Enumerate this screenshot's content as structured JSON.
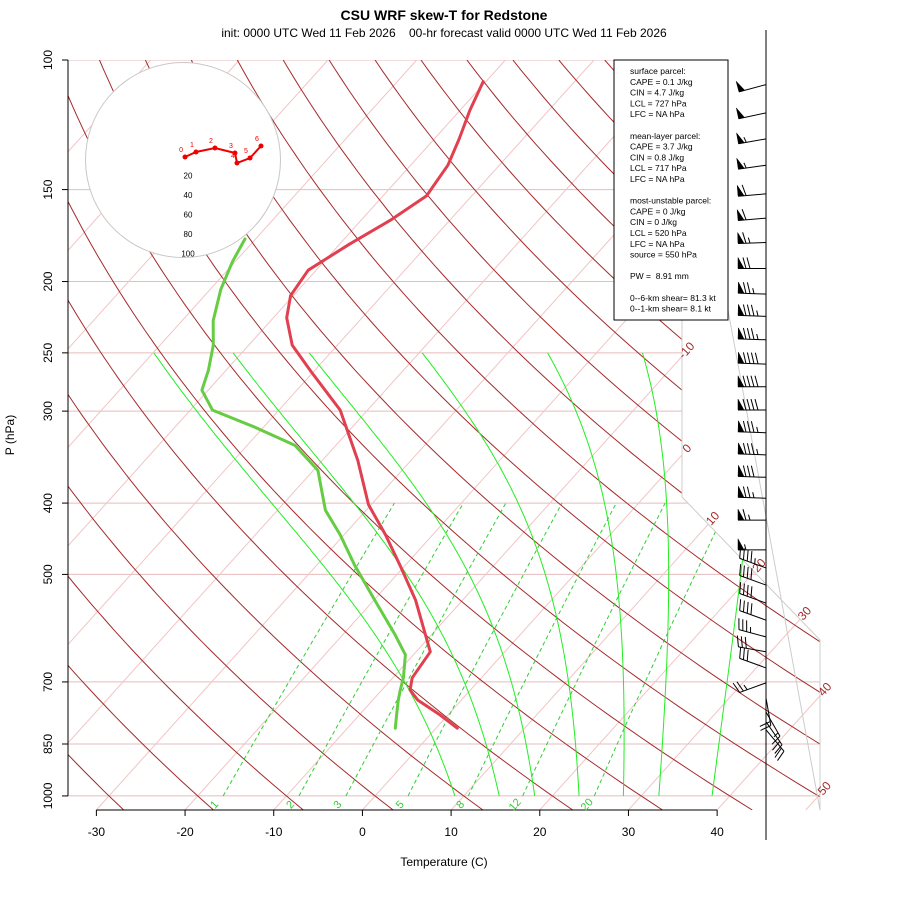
{
  "chart_data": {
    "type": "skewt",
    "title": "CSU WRF skew-T for Redstone",
    "subtitle": "init: 0000 UTC Wed 11 Feb 2026    00-hr forecast valid 0000 UTC Wed 11 Feb 2026",
    "x_label": "Temperature (C)",
    "y_label": "P (hPa)",
    "xlim": [
      -33.2,
      51.6
    ],
    "ylim": [
      1045,
      100
    ],
    "log_y": true,
    "xticks": [
      -30,
      -20,
      -10,
      0,
      10,
      20,
      30,
      40
    ],
    "yticks": [
      100,
      150,
      200,
      250,
      300,
      400,
      500,
      700,
      850,
      1000
    ],
    "grid": true,
    "isotherms": {
      "color": "#f2c4c4",
      "values": [
        -130,
        -120,
        -110,
        -100,
        -90,
        -80,
        -70,
        -60,
        -50,
        -40,
        -30,
        -20,
        -10,
        0,
        10,
        20,
        30,
        40,
        50
      ],
      "labeled": [
        -10,
        0,
        10,
        20,
        30,
        40,
        50
      ],
      "label_color": "#a52a2a"
    },
    "dry_adiabats": {
      "color": "#a52a2a",
      "values": [
        -30,
        -20,
        -10,
        0,
        10,
        20,
        30,
        40,
        50,
        60,
        70,
        80,
        90,
        100,
        110,
        120,
        130,
        140,
        150,
        160,
        170
      ]
    },
    "moist_adiabats": {
      "color": "#22ee22",
      "plim": [
        1000,
        250
      ],
      "values": [
        9,
        14,
        18,
        23,
        28,
        32,
        38
      ]
    },
    "mixing_ratios": {
      "color": "#33cc33",
      "plim": [
        1000,
        400
      ],
      "values": [
        1,
        2,
        3,
        5,
        8,
        12,
        20
      ]
    },
    "temperature": {
      "color": "#e0404f",
      "pressure": [
        107,
        117,
        128,
        139,
        153,
        165,
        178,
        193,
        209,
        224,
        244,
        265,
        299,
        350,
        402,
        442,
        486,
        542,
        637,
        691,
        718,
        741,
        776,
        809
      ],
      "values": [
        -60.3,
        -58.9,
        -57.2,
        -55.8,
        -55.1,
        -56.7,
        -58.9,
        -60.9,
        -60.3,
        -58.5,
        -55.1,
        -50.3,
        -43.1,
        -36.0,
        -30.3,
        -25.3,
        -20.6,
        -15.3,
        -8.4,
        -7.8,
        -6.8,
        -4.9,
        -0.9,
        2.4
      ]
    },
    "dewpoint": {
      "color": "#66cc44",
      "pressure": [
        175,
        188,
        205,
        226,
        244,
        264,
        281,
        299,
        316,
        334,
        361,
        409,
        442,
        486,
        542,
        604,
        643,
        691,
        718,
        741,
        776,
        809
      ],
      "values": [
        -71.2,
        -70.3,
        -68.8,
        -66.5,
        -64.0,
        -62.0,
        -60.7,
        -57.5,
        -50.8,
        -44.6,
        -39.5,
        -34.6,
        -30.4,
        -25.7,
        -19.9,
        -14.1,
        -10.9,
        -8.8,
        -7.9,
        -7.1,
        -5.8,
        -4.6
      ]
    },
    "wind": {
      "pressure": [
        108,
        118,
        128,
        139,
        152,
        164,
        177,
        192,
        208,
        223,
        240,
        259,
        278,
        299,
        321,
        344,
        369,
        394,
        422,
        463,
        490,
        517,
        547,
        577,
        608,
        637,
        670,
        702,
        736,
        769,
        793,
        813
      ],
      "speed": [
        50,
        50,
        55,
        55,
        60,
        60,
        65,
        70,
        75,
        85,
        85,
        90,
        90,
        90,
        85,
        85,
        80,
        75,
        65,
        55,
        45,
        40,
        40,
        40,
        35,
        30,
        30,
        25,
        20,
        15,
        20,
        20
      ],
      "direction": [
        255,
        258,
        260,
        262,
        265,
        265,
        268,
        270,
        272,
        272,
        272,
        272,
        270,
        270,
        272,
        272,
        272,
        272,
        270,
        270,
        290,
        290,
        290,
        290,
        285,
        280,
        290,
        250,
        170,
        150,
        145,
        140
      ]
    },
    "hodograph": {
      "rings": [
        20,
        40,
        60,
        80,
        100
      ],
      "color": "#ee0000",
      "u": [
        2.1,
        13.3,
        32.8,
        53.3,
        55.4,
        68.7,
        80.0
      ],
      "v": [
        3.1,
        8.2,
        12.3,
        7.2,
        -3.1,
        2.1,
        14.4
      ],
      "heights": [
        0,
        1,
        2,
        3,
        4,
        5,
        6
      ]
    },
    "parcel_info": [
      [
        "surface parcel:",
        "CAPE = 0.1 J/kg",
        "CIN = 4.7 J/kg",
        "LCL = 727 hPa",
        "LFC = NA hPa"
      ],
      [
        "mean-layer parcel:",
        "CAPE = 3.7 J/kg",
        "CIN = 0.8 J/kg",
        "LCL = 717 hPa",
        "LFC = NA hPa"
      ],
      [
        "most-unstable parcel:",
        "CAPE = 0 J/kg",
        "CIN = 0 J/kg",
        "LCL = 520 hPa",
        "LFC = NA hPa",
        "source = 550 hPa"
      ],
      [
        "PW =  8.91 mm"
      ],
      [
        "0--6-km shear= 81.3 kt",
        "0--1-km shear= 8.1 kt"
      ]
    ]
  }
}
